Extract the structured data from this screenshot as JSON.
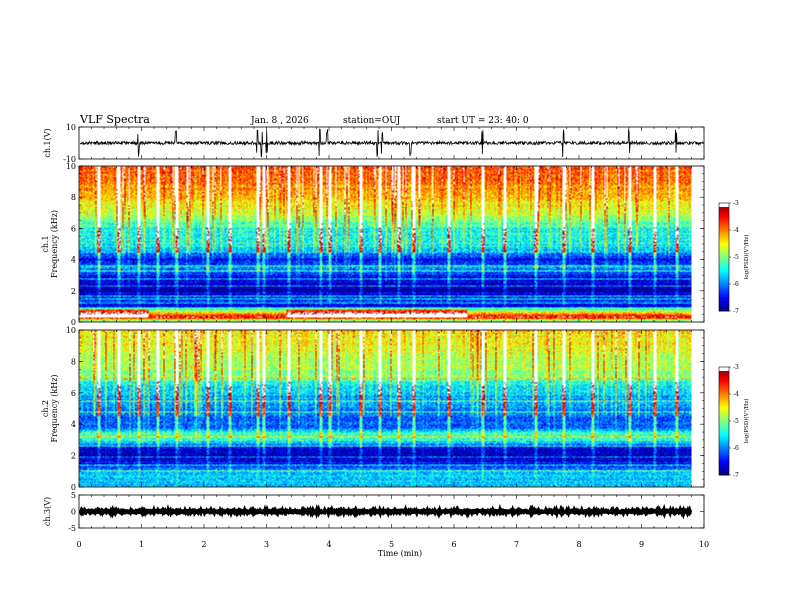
{
  "header": {
    "title": "VLF Spectra",
    "date": "Jan. 8 , 2026",
    "station": "station=OUJ",
    "start_time": "start UT = 23: 40: 0"
  },
  "chart_data": [
    {
      "type": "line",
      "panel": "ch1-waveform",
      "ylabel": "ch.1(V)",
      "ylim": [
        -10,
        10
      ],
      "yticks": [
        {
          "value": 10,
          "label": "10"
        },
        {
          "value": -10,
          "label": "-10"
        }
      ],
      "baseline": 0,
      "noise_amplitude": 1,
      "spike_times_min": [
        0.95,
        1.55,
        2.85,
        2.92,
        3.0,
        3.85,
        3.97,
        4.78,
        4.85,
        5.3,
        6.45,
        7.75,
        8.8,
        9.55
      ],
      "xlim": [
        0,
        10
      ]
    },
    {
      "type": "heatmap",
      "panel": "ch1-spectrogram",
      "ylabel": "ch.1\nFrequency (kHz)",
      "ylim": [
        0,
        10
      ],
      "yticks": [
        {
          "value": 0,
          "label": "0"
        },
        {
          "value": 2,
          "label": "2"
        },
        {
          "value": 4,
          "label": "4"
        },
        {
          "value": 6,
          "label": "6"
        },
        {
          "value": 8,
          "label": "8"
        },
        {
          "value": 10,
          "label": "10"
        }
      ],
      "xlim": [
        0,
        9.8
      ],
      "colorbar": {
        "label": "log(PSD)(V²/Hz)",
        "range": [
          -7,
          -3
        ],
        "ticks": [
          {
            "value": -3,
            "label": "-3"
          },
          {
            "value": -4,
            "label": "-4"
          },
          {
            "value": -5,
            "label": "-5"
          },
          {
            "value": -6,
            "label": "-6"
          },
          {
            "value": -7,
            "label": "-7"
          }
        ]
      },
      "band_profile_khz_logpsd": [
        [
          0,
          -5.6
        ],
        [
          0.3,
          -3.3
        ],
        [
          0.5,
          -3.8
        ],
        [
          0.8,
          -5.2
        ],
        [
          1.0,
          -6.6
        ],
        [
          1.5,
          -6.3
        ],
        [
          2.0,
          -6.9
        ],
        [
          2.5,
          -6.7
        ],
        [
          3.0,
          -6.4
        ],
        [
          3.5,
          -6.0
        ],
        [
          4.0,
          -6.6
        ],
        [
          4.5,
          -6.0
        ],
        [
          5.0,
          -5.6
        ],
        [
          6.0,
          -5.6
        ],
        [
          6.5,
          -5.2
        ],
        [
          7.0,
          -4.9
        ],
        [
          8.0,
          -4.5
        ],
        [
          9.0,
          -4.2
        ],
        [
          10.0,
          -4.0
        ]
      ],
      "enhancement_intervals_min": [
        [
          0.0,
          1.1
        ],
        [
          3.3,
          6.2
        ]
      ],
      "enhancement_band_khz": [
        0.3,
        0.8
      ],
      "impulse_times_min": [
        0.3,
        0.62,
        0.95,
        1.25,
        1.55,
        2.05,
        2.4,
        2.85,
        2.95,
        3.35,
        3.85,
        4.0,
        4.5,
        4.8,
        5.1,
        5.35,
        5.9,
        6.45,
        6.8,
        7.3,
        7.75,
        8.2,
        8.8,
        9.2,
        9.55
      ],
      "tone_lines_khz": [
        0.9,
        1.2,
        1.5,
        1.7,
        2.3,
        2.8,
        3.3,
        3.6
      ]
    },
    {
      "type": "heatmap",
      "panel": "ch2-spectrogram",
      "ylabel": "ch.2\nFrequency (kHz)",
      "ylim": [
        0,
        10
      ],
      "yticks": [
        {
          "value": 0,
          "label": "0"
        },
        {
          "value": 2,
          "label": "2"
        },
        {
          "value": 4,
          "label": "4"
        },
        {
          "value": 6,
          "label": "6"
        },
        {
          "value": 8,
          "label": "8"
        },
        {
          "value": 10,
          "label": "10"
        }
      ],
      "xlim": [
        0,
        9.8
      ],
      "colorbar": {
        "label": "log(PSD)(V²/Hz)",
        "range": [
          -7,
          -3
        ],
        "ticks": [
          {
            "value": -3,
            "label": "-3"
          },
          {
            "value": -4,
            "label": "-4"
          },
          {
            "value": -5,
            "label": "-5"
          },
          {
            "value": -6,
            "label": "-6"
          },
          {
            "value": -7,
            "label": "-7"
          }
        ]
      },
      "band_profile_khz_logpsd": [
        [
          0,
          -5.8
        ],
        [
          0.5,
          -5.6
        ],
        [
          1.0,
          -5.8
        ],
        [
          1.5,
          -6.5
        ],
        [
          2.0,
          -6.8
        ],
        [
          2.5,
          -6.6
        ],
        [
          3.0,
          -5.4
        ],
        [
          3.4,
          -5.3
        ],
        [
          3.8,
          -6.1
        ],
        [
          4.5,
          -6.2
        ],
        [
          5.5,
          -6.0
        ],
        [
          6.5,
          -5.7
        ],
        [
          7.0,
          -5.2
        ],
        [
          8.0,
          -5.0
        ],
        [
          9.0,
          -4.8
        ],
        [
          10.0,
          -4.6
        ]
      ],
      "enhancement_intervals_min": [],
      "enhancement_band_khz": [
        0.8,
        1.2
      ],
      "impulse_times_min": [
        0.3,
        0.62,
        0.95,
        1.25,
        1.55,
        2.05,
        2.4,
        2.85,
        2.95,
        3.35,
        3.85,
        4.0,
        4.5,
        4.8,
        5.1,
        5.35,
        5.9,
        6.45,
        6.8,
        7.3,
        7.75,
        8.2,
        8.8,
        9.2,
        9.55
      ],
      "tone_lines_khz": [
        1.0,
        1.4,
        1.9,
        2.6,
        3.2,
        4.8,
        5.5,
        6.9
      ]
    },
    {
      "type": "line",
      "panel": "ch3-waveform",
      "ylabel": "ch.3(V)",
      "ylim": [
        -5,
        5
      ],
      "yticks": [
        {
          "value": 5,
          "label": "5"
        },
        {
          "value": 0,
          "label": "0"
        },
        {
          "value": -5,
          "label": "-5"
        }
      ],
      "baseline": 0,
      "noise_amplitude": 0.3,
      "spike_times_min": [],
      "xlim": [
        0,
        9.8
      ]
    }
  ],
  "xaxis": {
    "label": "Time (min)",
    "range": [
      0,
      10
    ],
    "ticks": [
      {
        "value": 0,
        "label": "0"
      },
      {
        "value": 1,
        "label": "1"
      },
      {
        "value": 2,
        "label": "2"
      },
      {
        "value": 3,
        "label": "3"
      },
      {
        "value": 4,
        "label": "4"
      },
      {
        "value": 5,
        "label": "5"
      },
      {
        "value": 6,
        "label": "6"
      },
      {
        "value": 7,
        "label": "7"
      },
      {
        "value": 8,
        "label": "8"
      },
      {
        "value": 9,
        "label": "9"
      },
      {
        "value": 10,
        "label": "10"
      }
    ]
  }
}
